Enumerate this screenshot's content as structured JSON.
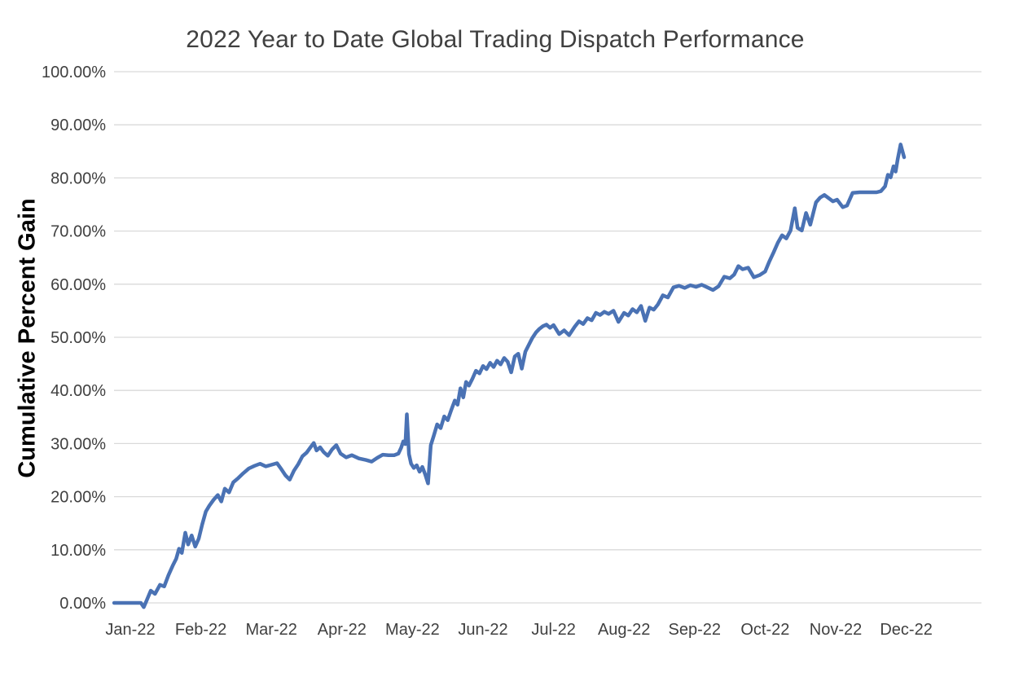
{
  "chart": {
    "title": "2022 Year to Date Global Trading Dispatch Performance",
    "y_axis_title": "Cumulative Percent Gain"
  },
  "chart_data": {
    "type": "line",
    "title": "2022 Year to Date Global Trading Dispatch Performance",
    "xlabel": "",
    "ylabel": "Cumulative Percent Gain",
    "ylim": [
      0,
      100
    ],
    "grid": "horizontal",
    "legend": "none",
    "x_unit": "months_after_jan_2022_tick",
    "x_ticks": [
      "Jan-22",
      "Feb-22",
      "Mar-22",
      "Apr-22",
      "May-22",
      "Jun-22",
      "Jul-22",
      "Aug-22",
      "Sep-22",
      "Oct-22",
      "Nov-22",
      "Dec-22"
    ],
    "y_ticks": [
      {
        "value": 0,
        "label": "0.00%"
      },
      {
        "value": 10,
        "label": "10.00%"
      },
      {
        "value": 20,
        "label": "20.00%"
      },
      {
        "value": 30,
        "label": "30.00%"
      },
      {
        "value": 40,
        "label": "40.00%"
      },
      {
        "value": 50,
        "label": "50.00%"
      },
      {
        "value": 60,
        "label": "60.00%"
      },
      {
        "value": 70,
        "label": "70.00%"
      },
      {
        "value": 80,
        "label": "80.00%"
      },
      {
        "value": 90,
        "label": "90.00%"
      },
      {
        "value": 100,
        "label": "100.00%"
      }
    ],
    "colors": {
      "line": "#4A72B4",
      "gridline": "#D9D9D9",
      "title_text": "#404040",
      "tick_text": "#404040",
      "axis_label_text": "#000000",
      "background": "#FFFFFF"
    },
    "series": [
      {
        "name": "Cumulative Percent Gain",
        "color": "#4A72B4",
        "points": [
          [
            -0.23,
            0.0
          ],
          [
            -0.1,
            0.0
          ],
          [
            0.05,
            0.0
          ],
          [
            0.15,
            0.0
          ],
          [
            0.19,
            -0.8
          ],
          [
            0.23,
            0.4
          ],
          [
            0.29,
            2.3
          ],
          [
            0.35,
            1.7
          ],
          [
            0.42,
            3.4
          ],
          [
            0.48,
            3.1
          ],
          [
            0.54,
            5.2
          ],
          [
            0.6,
            7.0
          ],
          [
            0.65,
            8.3
          ],
          [
            0.69,
            10.2
          ],
          [
            0.73,
            9.4
          ],
          [
            0.78,
            13.2
          ],
          [
            0.82,
            11.0
          ],
          [
            0.87,
            12.7
          ],
          [
            0.92,
            10.6
          ],
          [
            0.97,
            12.1
          ],
          [
            1.02,
            14.8
          ],
          [
            1.07,
            17.2
          ],
          [
            1.12,
            18.3
          ],
          [
            1.18,
            19.4
          ],
          [
            1.24,
            20.3
          ],
          [
            1.29,
            19.1
          ],
          [
            1.34,
            21.5
          ],
          [
            1.4,
            20.8
          ],
          [
            1.46,
            22.7
          ],
          [
            1.53,
            23.5
          ],
          [
            1.6,
            24.4
          ],
          [
            1.68,
            25.3
          ],
          [
            1.76,
            25.8
          ],
          [
            1.84,
            26.2
          ],
          [
            1.92,
            25.7
          ],
          [
            2.0,
            26.0
          ],
          [
            2.08,
            26.3
          ],
          [
            2.14,
            25.2
          ],
          [
            2.2,
            24.0
          ],
          [
            2.26,
            23.2
          ],
          [
            2.32,
            24.9
          ],
          [
            2.38,
            26.1
          ],
          [
            2.44,
            27.6
          ],
          [
            2.5,
            28.3
          ],
          [
            2.55,
            29.2
          ],
          [
            2.6,
            30.1
          ],
          [
            2.64,
            28.7
          ],
          [
            2.69,
            29.3
          ],
          [
            2.74,
            28.4
          ],
          [
            2.8,
            27.7
          ],
          [
            2.86,
            28.9
          ],
          [
            2.92,
            29.7
          ],
          [
            2.98,
            28.1
          ],
          [
            3.06,
            27.4
          ],
          [
            3.14,
            27.8
          ],
          [
            3.24,
            27.2
          ],
          [
            3.34,
            26.9
          ],
          [
            3.42,
            26.6
          ],
          [
            3.5,
            27.3
          ],
          [
            3.58,
            27.9
          ],
          [
            3.66,
            27.8
          ],
          [
            3.74,
            27.8
          ],
          [
            3.8,
            28.1
          ],
          [
            3.84,
            29.2
          ],
          [
            3.87,
            30.4
          ],
          [
            3.9,
            29.9
          ],
          [
            3.92,
            35.5
          ],
          [
            3.95,
            28.0
          ],
          [
            3.98,
            26.2
          ],
          [
            4.02,
            25.4
          ],
          [
            4.06,
            25.9
          ],
          [
            4.1,
            24.7
          ],
          [
            4.14,
            25.6
          ],
          [
            4.18,
            24.2
          ],
          [
            4.22,
            22.5
          ],
          [
            4.26,
            29.7
          ],
          [
            4.3,
            31.4
          ],
          [
            4.35,
            33.6
          ],
          [
            4.4,
            32.9
          ],
          [
            4.45,
            35.1
          ],
          [
            4.5,
            34.4
          ],
          [
            4.55,
            36.3
          ],
          [
            4.6,
            38.1
          ],
          [
            4.64,
            37.3
          ],
          [
            4.68,
            40.4
          ],
          [
            4.72,
            38.7
          ],
          [
            4.76,
            41.6
          ],
          [
            4.8,
            40.9
          ],
          [
            4.85,
            42.2
          ],
          [
            4.9,
            43.7
          ],
          [
            4.95,
            43.2
          ],
          [
            5.0,
            44.6
          ],
          [
            5.05,
            44.0
          ],
          [
            5.1,
            45.2
          ],
          [
            5.15,
            44.4
          ],
          [
            5.2,
            45.6
          ],
          [
            5.25,
            44.9
          ],
          [
            5.3,
            46.1
          ],
          [
            5.35,
            45.4
          ],
          [
            5.4,
            43.4
          ],
          [
            5.45,
            46.4
          ],
          [
            5.5,
            46.9
          ],
          [
            5.55,
            44.1
          ],
          [
            5.6,
            47.3
          ],
          [
            5.65,
            48.6
          ],
          [
            5.7,
            49.9
          ],
          [
            5.75,
            50.9
          ],
          [
            5.8,
            51.6
          ],
          [
            5.85,
            52.1
          ],
          [
            5.9,
            52.4
          ],
          [
            5.95,
            51.8
          ],
          [
            6.0,
            52.3
          ],
          [
            6.08,
            50.6
          ],
          [
            6.15,
            51.3
          ],
          [
            6.22,
            50.4
          ],
          [
            6.3,
            52.0
          ],
          [
            6.36,
            53.0
          ],
          [
            6.42,
            52.5
          ],
          [
            6.48,
            53.6
          ],
          [
            6.54,
            53.2
          ],
          [
            6.6,
            54.6
          ],
          [
            6.66,
            54.2
          ],
          [
            6.72,
            54.8
          ],
          [
            6.78,
            54.4
          ],
          [
            6.85,
            55.0
          ],
          [
            6.92,
            52.9
          ],
          [
            7.0,
            54.6
          ],
          [
            7.06,
            54.1
          ],
          [
            7.12,
            55.3
          ],
          [
            7.18,
            54.7
          ],
          [
            7.24,
            55.9
          ],
          [
            7.3,
            53.1
          ],
          [
            7.36,
            55.6
          ],
          [
            7.42,
            55.2
          ],
          [
            7.48,
            56.2
          ],
          [
            7.55,
            57.9
          ],
          [
            7.62,
            57.5
          ],
          [
            7.7,
            59.4
          ],
          [
            7.78,
            59.7
          ],
          [
            7.86,
            59.3
          ],
          [
            7.94,
            59.8
          ],
          [
            8.02,
            59.5
          ],
          [
            8.1,
            59.9
          ],
          [
            8.18,
            59.4
          ],
          [
            8.26,
            58.9
          ],
          [
            8.34,
            59.6
          ],
          [
            8.42,
            61.4
          ],
          [
            8.5,
            61.1
          ],
          [
            8.56,
            61.8
          ],
          [
            8.62,
            63.4
          ],
          [
            8.68,
            62.8
          ],
          [
            8.76,
            63.1
          ],
          [
            8.84,
            61.3
          ],
          [
            8.92,
            61.7
          ],
          [
            9.0,
            62.4
          ],
          [
            9.06,
            64.3
          ],
          [
            9.12,
            66.0
          ],
          [
            9.18,
            67.8
          ],
          [
            9.24,
            69.2
          ],
          [
            9.3,
            68.6
          ],
          [
            9.36,
            70.1
          ],
          [
            9.42,
            74.3
          ],
          [
            9.46,
            70.6
          ],
          [
            9.52,
            70.1
          ],
          [
            9.58,
            73.4
          ],
          [
            9.64,
            71.2
          ],
          [
            9.72,
            75.4
          ],
          [
            9.78,
            76.3
          ],
          [
            9.84,
            76.8
          ],
          [
            9.9,
            76.2
          ],
          [
            9.96,
            75.6
          ],
          [
            10.02,
            75.9
          ],
          [
            10.1,
            74.5
          ],
          [
            10.16,
            74.8
          ],
          [
            10.24,
            77.2
          ],
          [
            10.34,
            77.3
          ],
          [
            10.46,
            77.3
          ],
          [
            10.58,
            77.3
          ],
          [
            10.64,
            77.5
          ],
          [
            10.7,
            78.4
          ],
          [
            10.74,
            80.6
          ],
          [
            10.78,
            80.1
          ],
          [
            10.82,
            82.2
          ],
          [
            10.85,
            81.2
          ],
          [
            10.88,
            83.6
          ],
          [
            10.92,
            86.3
          ],
          [
            10.97,
            83.9
          ]
        ]
      }
    ]
  }
}
